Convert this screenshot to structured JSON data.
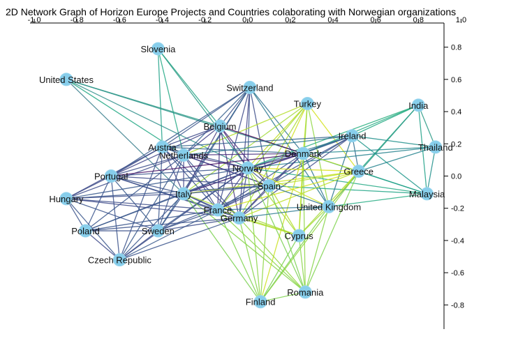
{
  "chart_data": {
    "type": "network",
    "title": "2D Network Graph of Horizon Europe Projects and Countries colaborating with Norwegian organizations",
    "x_ticks": [
      "-1.0",
      "-0.8",
      "-0.6",
      "-0.4",
      "-0.2",
      "0.0",
      "0.2",
      "0.4",
      "0.6",
      "0.8",
      "1.0"
    ],
    "x_tick_values": [
      -1.0,
      -0.8,
      -0.6,
      -0.4,
      -0.2,
      0.0,
      0.2,
      0.4,
      0.6,
      0.8,
      1.0
    ],
    "y_ticks": [
      "0.8",
      "0.6",
      "0.4",
      "0.2",
      "0.0",
      "-0.2",
      "-0.4",
      "-0.6",
      "-0.8"
    ],
    "y_tick_values": [
      0.8,
      0.6,
      0.4,
      0.2,
      0.0,
      -0.2,
      -0.4,
      -0.6,
      -0.8
    ],
    "xlim": [
      -1.02,
      0.92
    ],
    "ylim": [
      -0.95,
      0.95
    ],
    "nodes": [
      {
        "name": "Slovenia",
        "x": -0.42,
        "y": 0.79
      },
      {
        "name": "United States",
        "x": -0.85,
        "y": 0.6
      },
      {
        "name": "Switzerland",
        "x": 0.01,
        "y": 0.55
      },
      {
        "name": "Turkey",
        "x": 0.28,
        "y": 0.45
      },
      {
        "name": "India",
        "x": 0.8,
        "y": 0.44
      },
      {
        "name": "Belgium",
        "x": -0.13,
        "y": 0.31
      },
      {
        "name": "Ireland",
        "x": 0.49,
        "y": 0.25
      },
      {
        "name": "Austria",
        "x": -0.4,
        "y": 0.18
      },
      {
        "name": "Thailand",
        "x": 0.88,
        "y": 0.18
      },
      {
        "name": "Netherlands",
        "x": -0.3,
        "y": 0.13
      },
      {
        "name": "Denmark",
        "x": 0.26,
        "y": 0.14
      },
      {
        "name": "Norway",
        "x": 0.0,
        "y": 0.05
      },
      {
        "name": "Greece",
        "x": 0.52,
        "y": 0.03
      },
      {
        "name": "Portugal",
        "x": -0.64,
        "y": 0.0
      },
      {
        "name": "Spain",
        "x": 0.1,
        "y": -0.06
      },
      {
        "name": "Italy",
        "x": -0.3,
        "y": -0.11
      },
      {
        "name": "Malaysia",
        "x": 0.84,
        "y": -0.11
      },
      {
        "name": "Hungary",
        "x": -0.85,
        "y": -0.14
      },
      {
        "name": "United Kingdom",
        "x": 0.38,
        "y": -0.19
      },
      {
        "name": "France",
        "x": -0.14,
        "y": -0.21
      },
      {
        "name": "Germany",
        "x": -0.04,
        "y": -0.26
      },
      {
        "name": "Poland",
        "x": -0.76,
        "y": -0.34
      },
      {
        "name": "Sweden",
        "x": -0.42,
        "y": -0.34
      },
      {
        "name": "Cyprus",
        "x": 0.24,
        "y": -0.37
      },
      {
        "name": "Czech Republic",
        "x": -0.6,
        "y": -0.52
      },
      {
        "name": "Romania",
        "x": 0.27,
        "y": -0.72
      },
      {
        "name": "Finland",
        "x": 0.06,
        "y": -0.78
      }
    ],
    "edges": [
      [
        "Slovenia",
        "Netherlands",
        "#22a884"
      ],
      [
        "Slovenia",
        "Norway",
        "#2a9a86"
      ],
      [
        "Slovenia",
        "Belgium",
        "#25a384"
      ],
      [
        "Slovenia",
        "Austria",
        "#1fa187"
      ],
      [
        "United States",
        "Norway",
        "#31908c"
      ],
      [
        "United States",
        "Belgium",
        "#2a9a86"
      ],
      [
        "United States",
        "Netherlands",
        "#22a884"
      ],
      [
        "United States",
        "Italy",
        "#3a7f8d"
      ],
      [
        "United States",
        "Denmark",
        "#2d938a"
      ],
      [
        "Switzerland",
        "Belgium",
        "#3b518b"
      ],
      [
        "Switzerland",
        "Norway",
        "#3a548c"
      ],
      [
        "Switzerland",
        "Spain",
        "#3d4d8a"
      ],
      [
        "Switzerland",
        "Netherlands",
        "#355f8d"
      ],
      [
        "Switzerland",
        "France",
        "#3e4a89"
      ],
      [
        "Switzerland",
        "Germany",
        "#414487"
      ],
      [
        "Switzerland",
        "Italy",
        "#3b528b"
      ],
      [
        "Switzerland",
        "Denmark",
        "#2c728e"
      ],
      [
        "Switzerland",
        "United Kingdom",
        "#2a788e"
      ],
      [
        "Switzerland",
        "Sweden",
        "#33638d"
      ],
      [
        "Switzerland",
        "Austria",
        "#39568c"
      ],
      [
        "Switzerland",
        "Portugal",
        "#38598c"
      ],
      [
        "Turkey",
        "Norway",
        "#c2df23"
      ],
      [
        "Turkey",
        "Spain",
        "#cfe11c"
      ],
      [
        "Turkey",
        "Netherlands",
        "#b5de2b"
      ],
      [
        "Turkey",
        "Germany",
        "#a8db34"
      ],
      [
        "Turkey",
        "Denmark",
        "#bddf26"
      ],
      [
        "Turkey",
        "Cyprus",
        "#9bd93c"
      ],
      [
        "Turkey",
        "Greece",
        "#d2e21b"
      ],
      [
        "Turkey",
        "Italy",
        "#a2da37"
      ],
      [
        "Turkey",
        "France",
        "#a5db36"
      ],
      [
        "Turkey",
        "United Kingdom",
        "#90d743"
      ],
      [
        "India",
        "Thailand",
        "#2a9a86"
      ],
      [
        "India",
        "Malaysia",
        "#1fa187"
      ],
      [
        "India",
        "Ireland",
        "#23a983"
      ],
      [
        "India",
        "Denmark",
        "#25ab82"
      ],
      [
        "India",
        "Norway",
        "#29af7f"
      ],
      [
        "India",
        "Greece",
        "#22a884"
      ],
      [
        "India",
        "United Kingdom",
        "#2a9a86"
      ],
      [
        "Thailand",
        "Ireland",
        "#21918c"
      ],
      [
        "Thailand",
        "Malaysia",
        "#21918c"
      ],
      [
        "Thailand",
        "Denmark",
        "#23898e"
      ],
      [
        "Thailand",
        "Norway",
        "#26828e"
      ],
      [
        "Thailand",
        "Greece",
        "#25838e"
      ],
      [
        "Malaysia",
        "Ireland",
        "#1f968b"
      ],
      [
        "Malaysia",
        "Denmark",
        "#1f9e89"
      ],
      [
        "Malaysia",
        "Norway",
        "#22a884"
      ],
      [
        "Malaysia",
        "Spain",
        "#20a486"
      ],
      [
        "Malaysia",
        "United Kingdom",
        "#25ab82"
      ],
      [
        "Malaysia",
        "Greece",
        "#1fa187"
      ],
      [
        "Belgium",
        "Norway",
        "#482878"
      ],
      [
        "Belgium",
        "Spain",
        "#472d7b"
      ],
      [
        "Belgium",
        "France",
        "#46327e"
      ],
      [
        "Belgium",
        "Germany",
        "#45347f"
      ],
      [
        "Belgium",
        "Netherlands",
        "#424086"
      ],
      [
        "Belgium",
        "Italy",
        "#443983"
      ],
      [
        "Belgium",
        "Denmark",
        "#440154"
      ],
      [
        "Belgium",
        "Austria",
        "#3e4989"
      ],
      [
        "Belgium",
        "Portugal",
        "#414487"
      ],
      [
        "Ireland",
        "Norway",
        "#2c728e"
      ],
      [
        "Ireland",
        "Spain",
        "#38598c"
      ],
      [
        "Ireland",
        "France",
        "#3b528b"
      ],
      [
        "Ireland",
        "Germany",
        "#3e4c8a"
      ],
      [
        "Ireland",
        "Denmark",
        "#2f6b8e"
      ],
      [
        "Ireland",
        "United Kingdom",
        "#2c738e"
      ],
      [
        "Ireland",
        "Greece",
        "#2f6c8e"
      ],
      [
        "Ireland",
        "Netherlands",
        "#2a778e"
      ],
      [
        "Ireland",
        "Italy",
        "#355e8d"
      ],
      [
        "Ireland",
        "Austria",
        "#33628d"
      ],
      [
        "Austria",
        "Norway",
        "#3b528b"
      ],
      [
        "Austria",
        "Spain",
        "#3e4a89"
      ],
      [
        "Austria",
        "Italy",
        "#414487"
      ],
      [
        "Austria",
        "Germany",
        "#3d4d8a"
      ],
      [
        "Austria",
        "France",
        "#3a548c"
      ],
      [
        "Austria",
        "Sweden",
        "#39568c"
      ],
      [
        "Austria",
        "Portugal",
        "#3c4f8a"
      ],
      [
        "Austria",
        "Hungary",
        "#3e4c8a"
      ],
      [
        "Austria",
        "Denmark",
        "#33638d"
      ],
      [
        "Austria",
        "Czech Republic",
        "#3b528b"
      ],
      [
        "Austria",
        "Netherlands",
        "#355f8d"
      ],
      [
        "Netherlands",
        "Norway",
        "#46327e"
      ],
      [
        "Netherlands",
        "Spain",
        "#443a83"
      ],
      [
        "Netherlands",
        "Italy",
        "#414487"
      ],
      [
        "Netherlands",
        "France",
        "#3e4a89"
      ],
      [
        "Netherlands",
        "Germany",
        "#3b528b"
      ],
      [
        "Netherlands",
        "Sweden",
        "#3a548c"
      ],
      [
        "Netherlands",
        "Portugal",
        "#3d4d8a"
      ],
      [
        "Netherlands",
        "Hungary",
        "#3e4c8a"
      ],
      [
        "Netherlands",
        "Poland",
        "#39568c"
      ],
      [
        "Netherlands",
        "Czech Republic",
        "#38598c"
      ],
      [
        "Netherlands",
        "Denmark",
        "#472c7a"
      ],
      [
        "Denmark",
        "Norway",
        "#45337f"
      ],
      [
        "Denmark",
        "Spain",
        "#3e4a89"
      ],
      [
        "Denmark",
        "France",
        "#3b528b"
      ],
      [
        "Denmark",
        "Germany",
        "#414487"
      ],
      [
        "Denmark",
        "Italy",
        "#482475"
      ],
      [
        "Denmark",
        "Portugal",
        "#471365"
      ],
      [
        "Denmark",
        "United Kingdom",
        "#2c728e"
      ],
      [
        "Denmark",
        "Greece",
        "#b5de2b"
      ],
      [
        "Denmark",
        "Cyprus",
        "#bddf26"
      ],
      [
        "Denmark",
        "Finland",
        "#cae11f"
      ],
      [
        "Denmark",
        "Romania",
        "#8ed645"
      ],
      [
        "Norway",
        "Spain",
        "#3b528b"
      ],
      [
        "Norway",
        "Italy",
        "#3e4a89"
      ],
      [
        "Norway",
        "France",
        "#414487"
      ],
      [
        "Norway",
        "Germany",
        "#3d4d8a"
      ],
      [
        "Norway",
        "Portugal",
        "#3a548c"
      ],
      [
        "Norway",
        "Hungary",
        "#38598c"
      ],
      [
        "Norway",
        "Sweden",
        "#39568c"
      ],
      [
        "Norway",
        "Poland",
        "#3b528b"
      ],
      [
        "Norway",
        "Czech Republic",
        "#3c4f8a"
      ],
      [
        "Norway",
        "Greece",
        "#d8e219"
      ],
      [
        "Norway",
        "United Kingdom",
        "#c8e020"
      ],
      [
        "Norway",
        "Cyprus",
        "#a8db34"
      ],
      [
        "Norway",
        "Finland",
        "#8bd646"
      ],
      [
        "Norway",
        "Romania",
        "#7ad151"
      ],
      [
        "Greece",
        "Spain",
        "#b5de2b"
      ],
      [
        "Greece",
        "Italy",
        "#cae11f"
      ],
      [
        "Greece",
        "France",
        "#d2e21b"
      ],
      [
        "Greece",
        "Germany",
        "#bddf26"
      ],
      [
        "Greece",
        "Cyprus",
        "#a5db36"
      ],
      [
        "Greece",
        "Romania",
        "#7fd34e"
      ],
      [
        "Greece",
        "United Kingdom",
        "#c2df23"
      ],
      [
        "Greece",
        "Finland",
        "#93d741"
      ],
      [
        "Portugal",
        "Spain",
        "#3e4c8a"
      ],
      [
        "Portugal",
        "Italy",
        "#3b528b"
      ],
      [
        "Portugal",
        "France",
        "#39568c"
      ],
      [
        "Portugal",
        "Germany",
        "#3d4d8a"
      ],
      [
        "Portugal",
        "Hungary",
        "#3e4a89"
      ],
      [
        "Portugal",
        "Sweden",
        "#38598c"
      ],
      [
        "Portugal",
        "Poland",
        "#3a548c"
      ],
      [
        "Portugal",
        "Czech Republic",
        "#3b528b"
      ],
      [
        "Spain",
        "Italy",
        "#3a548c"
      ],
      [
        "Spain",
        "France",
        "#3e4a89"
      ],
      [
        "Spain",
        "Germany",
        "#414487"
      ],
      [
        "Spain",
        "United Kingdom",
        "#2c728e"
      ],
      [
        "Spain",
        "Cyprus",
        "#b5de2b"
      ],
      [
        "Spain",
        "Finland",
        "#8ed645"
      ],
      [
        "Spain",
        "Romania",
        "#7ad151"
      ],
      [
        "Spain",
        "Sweden",
        "#3b528b"
      ],
      [
        "Spain",
        "Hungary",
        "#39568c"
      ],
      [
        "Italy",
        "France",
        "#3b528b"
      ],
      [
        "Italy",
        "Germany",
        "#3e4a89"
      ],
      [
        "Italy",
        "Hungary",
        "#3d4d8a"
      ],
      [
        "Italy",
        "Sweden",
        "#3a548c"
      ],
      [
        "Italy",
        "Poland",
        "#38598c"
      ],
      [
        "Italy",
        "Czech Republic",
        "#39568c"
      ],
      [
        "Italy",
        "Cyprus",
        "#a8db34"
      ],
      [
        "Italy",
        "Finland",
        "#7ad151"
      ],
      [
        "Italy",
        "Romania",
        "#86d549"
      ],
      [
        "Hungary",
        "France",
        "#3d4d8a"
      ],
      [
        "Hungary",
        "Germany",
        "#3e4a89"
      ],
      [
        "Hungary",
        "Sweden",
        "#3a548c"
      ],
      [
        "Hungary",
        "Poland",
        "#3b528b"
      ],
      [
        "Hungary",
        "Czech Republic",
        "#39568c"
      ],
      [
        "United Kingdom",
        "France",
        "#2c728e"
      ],
      [
        "United Kingdom",
        "Germany",
        "#2a788e"
      ],
      [
        "United Kingdom",
        "Cyprus",
        "#a5db36"
      ],
      [
        "United Kingdom",
        "Finland",
        "#7ad151"
      ],
      [
        "United Kingdom",
        "Romania",
        "#86d549"
      ],
      [
        "France",
        "Germany",
        "#3b528b"
      ],
      [
        "France",
        "Sweden",
        "#3a548c"
      ],
      [
        "France",
        "Poland",
        "#39568c"
      ],
      [
        "France",
        "Czech Republic",
        "#38598c"
      ],
      [
        "France",
        "Cyprus",
        "#a8db34"
      ],
      [
        "France",
        "Finland",
        "#7fd34e"
      ],
      [
        "France",
        "Romania",
        "#8bd646"
      ],
      [
        "Germany",
        "Sweden",
        "#3d4d8a"
      ],
      [
        "Germany",
        "Poland",
        "#3b528b"
      ],
      [
        "Germany",
        "Czech Republic",
        "#3a548c"
      ],
      [
        "Germany",
        "Cyprus",
        "#b5de2b"
      ],
      [
        "Germany",
        "Finland",
        "#86d549"
      ],
      [
        "Germany",
        "Romania",
        "#93d741"
      ],
      [
        "Poland",
        "Sweden",
        "#3b528b"
      ],
      [
        "Poland",
        "Czech Republic",
        "#3e4a89"
      ],
      [
        "Sweden",
        "Czech Republic",
        "#3d4d8a"
      ],
      [
        "Cyprus",
        "Finland",
        "#7ad151"
      ],
      [
        "Cyprus",
        "Romania",
        "#8bd646"
      ],
      [
        "Finland",
        "Romania",
        "#7fd34e"
      ]
    ],
    "node_color": "#87ceeb"
  }
}
